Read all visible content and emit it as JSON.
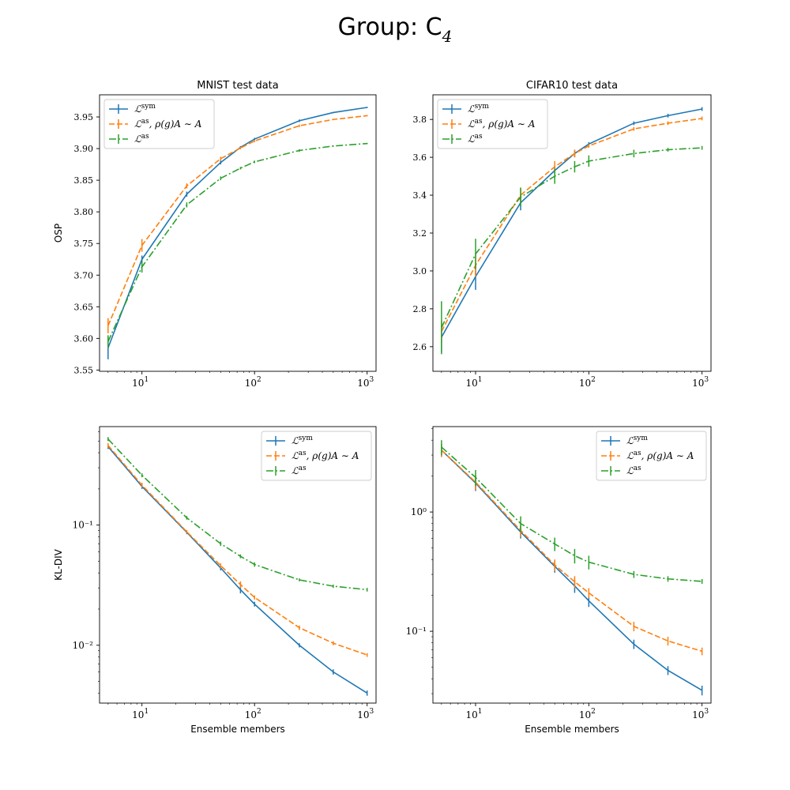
{
  "figure_title": "Group: C",
  "figure_title_subscript": "4",
  "series_styles": [
    {
      "key": "sym",
      "color": "#1f77b4",
      "dash": "",
      "legend_main": "ℒ",
      "legend_sup": "sym",
      "legend_suffix": ""
    },
    {
      "key": "as_rho",
      "color": "#ff7f0e",
      "dash": "7,3",
      "legend_main": "ℒ",
      "legend_sup": "as",
      "legend_suffix": ", ρ(g)A ∼ A"
    },
    {
      "key": "as",
      "color": "#2ca02c",
      "dash": "9,3,2,3",
      "legend_main": "ℒ",
      "legend_sup": "as",
      "legend_suffix": ""
    }
  ],
  "chart_data": [
    {
      "type": "line",
      "title": "MNIST test data",
      "xlabel": "",
      "ylabel": "OSP",
      "xscale": "log",
      "yscale": "linear",
      "xlim": [
        4.2,
        1200
      ],
      "ylim": [
        3.548,
        3.985
      ],
      "yticks": [
        3.55,
        3.6,
        3.65,
        3.7,
        3.75,
        3.8,
        3.85,
        3.9,
        3.95
      ],
      "ytick_labels": [
        "3.55",
        "3.60",
        "3.65",
        "3.70",
        "3.75",
        "3.80",
        "3.85",
        "3.90",
        "3.95"
      ],
      "xticks": [
        10,
        100,
        1000
      ],
      "legend_position": "upper-left",
      "x": [
        5,
        10,
        25,
        50,
        75,
        100,
        250,
        500,
        1000
      ],
      "series": [
        {
          "name": "sym",
          "values": [
            3.585,
            3.725,
            3.828,
            3.878,
            3.902,
            3.915,
            3.944,
            3.957,
            3.965
          ],
          "errors": [
            0.018,
            0.006,
            0.004,
            0.003,
            0.002,
            0.002,
            0.002,
            0.001,
            0.001
          ]
        },
        {
          "name": "as_rho",
          "values": [
            3.62,
            3.747,
            3.841,
            3.884,
            3.901,
            3.912,
            3.936,
            3.946,
            3.952
          ],
          "errors": [
            0.012,
            0.01,
            0.004,
            0.003,
            0.002,
            0.002,
            0.002,
            0.001,
            0.001
          ]
        },
        {
          "name": "as",
          "values": [
            3.595,
            3.713,
            3.811,
            3.853,
            3.869,
            3.879,
            3.897,
            3.904,
            3.908
          ],
          "errors": [
            0.01,
            0.009,
            0.004,
            0.003,
            0.002,
            0.002,
            0.002,
            0.001,
            0.001
          ]
        }
      ]
    },
    {
      "type": "line",
      "title": "CIFAR10 test data",
      "xlabel": "",
      "ylabel": "",
      "xscale": "log",
      "yscale": "linear",
      "xlim": [
        4.2,
        1200
      ],
      "ylim": [
        2.47,
        3.93
      ],
      "yticks": [
        2.6,
        2.8,
        3.0,
        3.2,
        3.4,
        3.6,
        3.8
      ],
      "ytick_labels": [
        "2.6",
        "2.8",
        "3.0",
        "3.2",
        "3.4",
        "3.6",
        "3.8"
      ],
      "xticks": [
        10,
        100,
        1000
      ],
      "legend_position": "upper-left",
      "x": [
        5,
        10,
        25,
        50,
        75,
        100,
        250,
        500,
        1000
      ],
      "series": [
        {
          "name": "sym",
          "values": [
            2.65,
            2.97,
            3.36,
            3.53,
            3.62,
            3.67,
            3.78,
            3.82,
            3.855
          ],
          "errors": [
            0.08,
            0.07,
            0.04,
            0.02,
            0.02,
            0.01,
            0.01,
            0.01,
            0.01
          ]
        },
        {
          "name": "as_rho",
          "values": [
            2.68,
            3.03,
            3.4,
            3.55,
            3.62,
            3.66,
            3.75,
            3.78,
            3.805
          ],
          "errors": [
            0.06,
            0.06,
            0.04,
            0.03,
            0.02,
            0.01,
            0.01,
            0.01,
            0.01
          ]
        },
        {
          "name": "as",
          "values": [
            2.7,
            3.09,
            3.39,
            3.5,
            3.55,
            3.58,
            3.62,
            3.64,
            3.65
          ],
          "errors": [
            0.14,
            0.08,
            0.05,
            0.04,
            0.03,
            0.03,
            0.02,
            0.01,
            0.01
          ]
        }
      ]
    },
    {
      "type": "line",
      "title": "",
      "xlabel": "Ensemble members",
      "ylabel": "KL-DIV",
      "xscale": "log",
      "yscale": "log",
      "xlim": [
        4.2,
        1200
      ],
      "ylim": [
        0.0033,
        0.66
      ],
      "yticks": [
        0.01,
        0.1
      ],
      "ytick_labels": [
        "10⁻²",
        "10⁻¹"
      ],
      "xticks": [
        10,
        100,
        1000
      ],
      "legend_position": "upper-right",
      "x": [
        5,
        10,
        25,
        50,
        75,
        100,
        250,
        500,
        1000
      ],
      "series": [
        {
          "name": "sym",
          "values": [
            0.45,
            0.21,
            0.087,
            0.044,
            0.029,
            0.022,
            0.01,
            0.006,
            0.004
          ],
          "errors": [
            0.02,
            0.01,
            0.003,
            0.002,
            0.002,
            0.001,
            0.0004,
            0.0003,
            0.0002
          ]
        },
        {
          "name": "as_rho",
          "values": [
            0.46,
            0.215,
            0.088,
            0.046,
            0.032,
            0.025,
            0.014,
            0.0104,
            0.0083
          ],
          "errors": [
            0.02,
            0.01,
            0.003,
            0.002,
            0.002,
            0.001,
            0.0006,
            0.0004,
            0.0003
          ]
        },
        {
          "name": "as",
          "values": [
            0.52,
            0.26,
            0.115,
            0.07,
            0.055,
            0.047,
            0.035,
            0.031,
            0.029
          ],
          "errors": [
            0.02,
            0.01,
            0.004,
            0.003,
            0.002,
            0.002,
            0.001,
            0.001,
            0.001
          ]
        }
      ]
    },
    {
      "type": "line",
      "title": "",
      "xlabel": "Ensemble members",
      "ylabel": "",
      "xscale": "log",
      "yscale": "log",
      "xlim": [
        4.2,
        1200
      ],
      "ylim": [
        0.025,
        5.2
      ],
      "yticks": [
        0.1,
        1
      ],
      "ytick_labels": [
        "10⁻¹",
        "10⁰"
      ],
      "xticks": [
        10,
        100,
        1000
      ],
      "legend_position": "upper-right",
      "x": [
        5,
        10,
        25,
        50,
        75,
        100,
        250,
        500,
        1000
      ],
      "series": [
        {
          "name": "sym",
          "values": [
            3.3,
            1.75,
            0.68,
            0.35,
            0.24,
            0.18,
            0.078,
            0.047,
            0.032
          ],
          "errors": [
            0.4,
            0.25,
            0.08,
            0.04,
            0.03,
            0.02,
            0.007,
            0.004,
            0.003
          ]
        },
        {
          "name": "as_rho",
          "values": [
            3.3,
            1.78,
            0.7,
            0.36,
            0.26,
            0.21,
            0.11,
            0.083,
            0.068
          ],
          "errors": [
            0.4,
            0.25,
            0.08,
            0.04,
            0.03,
            0.02,
            0.01,
            0.007,
            0.005
          ]
        },
        {
          "name": "as",
          "values": [
            3.5,
            1.95,
            0.8,
            0.54,
            0.43,
            0.38,
            0.3,
            0.275,
            0.262
          ],
          "errors": [
            0.5,
            0.3,
            0.12,
            0.07,
            0.06,
            0.05,
            0.02,
            0.015,
            0.012
          ]
        }
      ]
    }
  ]
}
